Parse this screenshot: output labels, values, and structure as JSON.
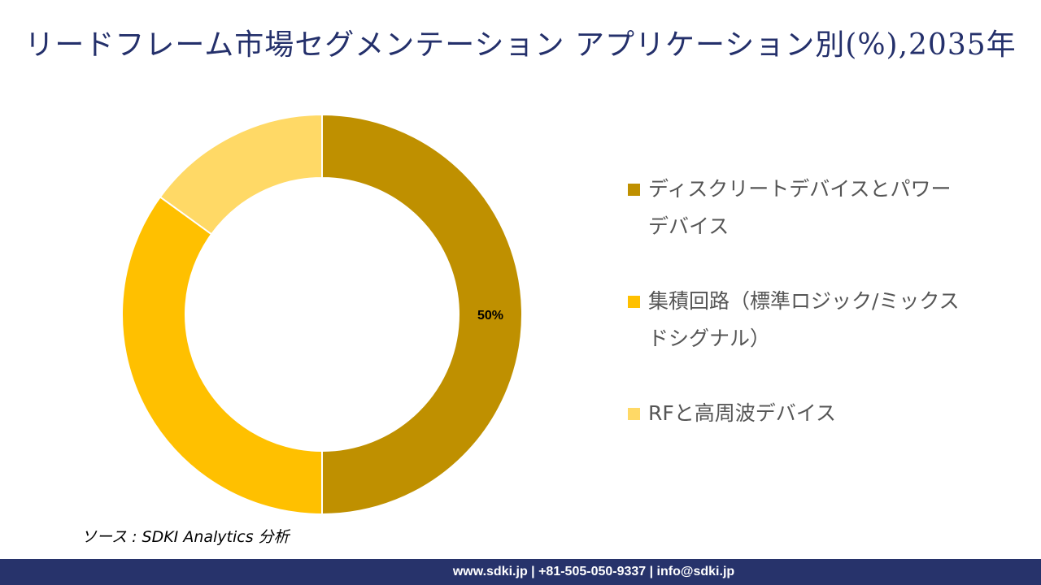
{
  "title": "リードフレーム市場セグメンテーション アプリケーション別(%),2035年",
  "chart_data": {
    "type": "pie",
    "donut": true,
    "categories": [
      "ディスクリートデバイスとパワーデバイス",
      "集積回路（標準ロジック/ミックスドシグナル）",
      "RFと高周波デバイス"
    ],
    "values": [
      50,
      35,
      15
    ],
    "colors": [
      "#bf9000",
      "#ffc000",
      "#ffd966"
    ],
    "data_labels": [
      "50%",
      "",
      ""
    ],
    "legend_placement": "right"
  },
  "source": "ソース : SDKI Analytics 分析",
  "footer": "www.sdki.jp | +81-505-050-9337 | info@sdki.jp"
}
